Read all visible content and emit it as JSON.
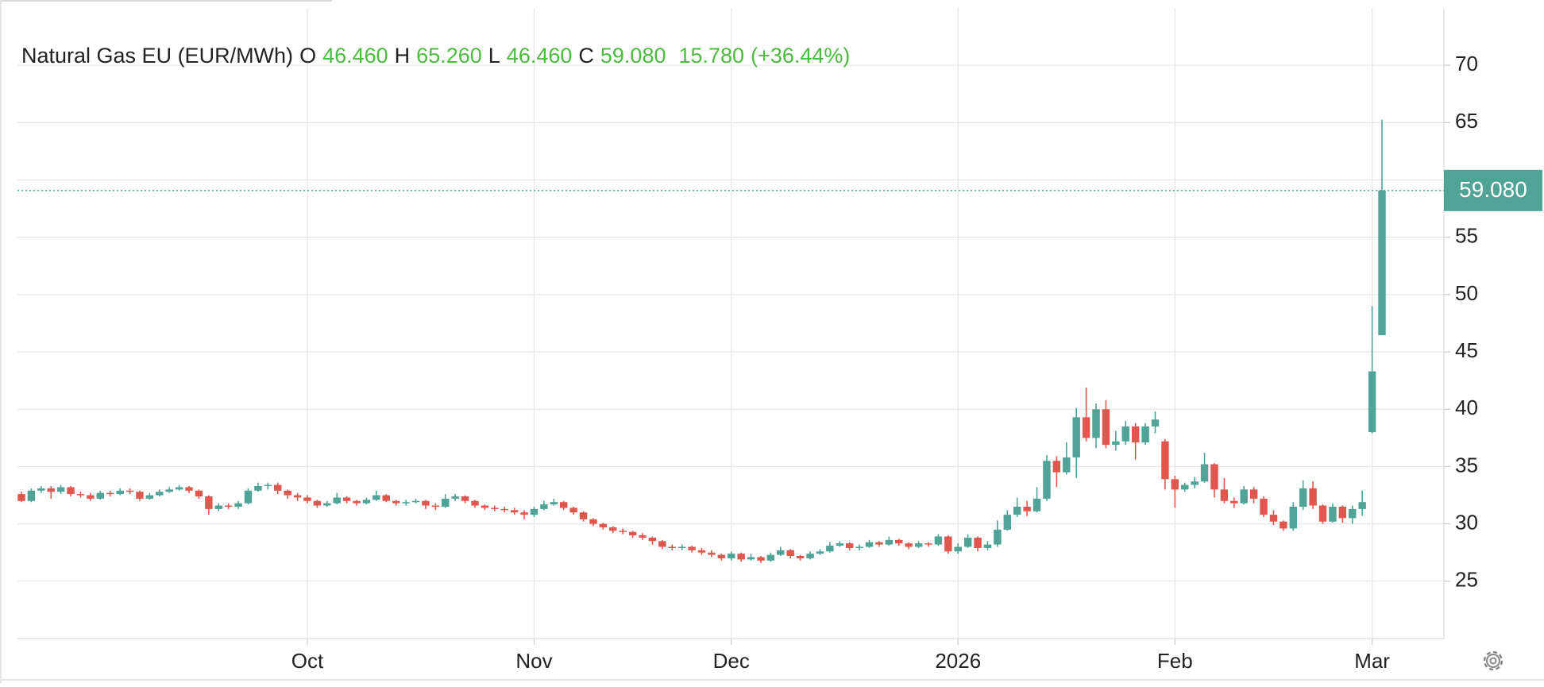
{
  "chart_data": {
    "type": "candlestick",
    "readout": {
      "name": "Natural Gas EU (EUR/MWh)",
      "fields": [
        {
          "label": "O",
          "text": "46.460"
        },
        {
          "label": "H",
          "text": "65.260"
        },
        {
          "label": "L",
          "text": "46.460"
        },
        {
          "label": "C",
          "text": "59.080"
        }
      ],
      "change": "15.780",
      "change_pct": "(+36.44%)",
      "color": "#4cbb3f"
    },
    "last_price": {
      "value": 59.08,
      "label": "59.080"
    },
    "up_color": "#4fa397",
    "down_color": "#e0574f",
    "grid": true,
    "ylim": [
      20,
      75
    ],
    "yticks": [
      25,
      30,
      35,
      40,
      45,
      50,
      55,
      60,
      65,
      70
    ],
    "categories": [
      null,
      null,
      null,
      null,
      null,
      null,
      null,
      null,
      null,
      null,
      null,
      null,
      null,
      null,
      null,
      null,
      null,
      null,
      null,
      null,
      null,
      null,
      null,
      null,
      null,
      null,
      null,
      null,
      null,
      "Oct",
      null,
      null,
      null,
      null,
      null,
      null,
      null,
      null,
      null,
      null,
      null,
      null,
      null,
      null,
      null,
      null,
      null,
      null,
      null,
      null,
      null,
      null,
      "Nov",
      null,
      null,
      null,
      null,
      null,
      null,
      null,
      null,
      null,
      null,
      null,
      null,
      null,
      null,
      null,
      null,
      null,
      null,
      null,
      "Dec",
      null,
      null,
      null,
      null,
      null,
      null,
      null,
      null,
      null,
      null,
      null,
      null,
      null,
      null,
      null,
      null,
      null,
      null,
      null,
      null,
      null,
      null,
      "2026",
      null,
      null,
      null,
      null,
      null,
      null,
      null,
      null,
      null,
      null,
      null,
      null,
      null,
      null,
      null,
      null,
      null,
      null,
      null,
      null,
      null,
      "Feb",
      null,
      null,
      null,
      null,
      null,
      null,
      null,
      null,
      null,
      null,
      null,
      null,
      null,
      null,
      null,
      null,
      null,
      null,
      null,
      "Mar",
      null
    ],
    "series": [
      {
        "name": "Natural Gas EU (EUR/MWh)",
        "open": [
          32.6,
          32.0,
          32.9,
          33.1,
          32.8,
          33.2,
          32.6,
          32.5,
          32.2,
          32.7,
          32.6,
          32.9,
          32.8,
          32.2,
          32.5,
          32.8,
          33.0,
          33.2,
          32.9,
          32.4,
          31.3,
          31.6,
          31.5,
          31.8,
          32.9,
          33.3,
          33.4,
          32.9,
          32.5,
          32.3,
          32.0,
          31.6,
          31.8,
          32.3,
          32.0,
          31.8,
          32.1,
          32.5,
          32.0,
          31.8,
          31.9,
          32.0,
          31.6,
          31.5,
          32.2,
          32.4,
          32.0,
          31.6,
          31.4,
          31.3,
          31.2,
          31.0,
          30.8,
          31.3,
          31.7,
          31.9,
          31.4,
          31.0,
          30.4,
          30.0,
          29.7,
          29.4,
          29.3,
          29.0,
          28.8,
          28.5,
          28.0,
          27.9,
          28.0,
          27.7,
          27.5,
          27.3,
          27.0,
          27.4,
          26.9,
          27.1,
          26.8,
          27.3,
          27.7,
          27.2,
          27.0,
          27.4,
          27.6,
          28.1,
          28.3,
          27.9,
          28.0,
          28.4,
          28.2,
          28.6,
          28.3,
          28.0,
          28.3,
          28.2,
          28.9,
          27.6,
          28.0,
          28.8,
          27.9,
          28.2,
          29.5,
          30.8,
          31.5,
          31.1,
          32.2,
          35.5,
          34.5,
          35.8,
          39.3,
          37.5,
          40.0,
          36.9,
          37.2,
          38.5,
          37.1,
          38.5,
          37.2,
          33.9,
          33.0,
          33.4,
          33.7,
          35.2,
          33.0,
          32.0,
          31.8,
          33.0,
          32.2,
          30.8,
          30.2,
          29.6,
          31.5,
          33.1,
          31.6,
          30.2,
          31.5,
          30.5,
          31.3,
          38.0,
          46.46
        ],
        "high": [
          32.8,
          33.1,
          33.3,
          33.3,
          33.4,
          33.3,
          32.8,
          32.7,
          32.9,
          32.9,
          33.1,
          33.1,
          32.9,
          32.7,
          33.0,
          33.2,
          33.4,
          33.3,
          33.0,
          32.5,
          31.8,
          31.8,
          32.0,
          33.1,
          33.6,
          33.6,
          33.6,
          33.0,
          32.7,
          32.5,
          32.1,
          32.0,
          32.7,
          32.4,
          32.1,
          32.3,
          32.9,
          32.6,
          32.1,
          32.1,
          32.2,
          32.1,
          31.8,
          32.6,
          32.6,
          32.5,
          32.1,
          31.7,
          31.6,
          31.5,
          31.4,
          31.2,
          31.5,
          32.0,
          32.2,
          32.0,
          31.5,
          31.1,
          30.5,
          30.1,
          29.8,
          29.6,
          29.4,
          29.2,
          28.9,
          28.6,
          28.2,
          28.2,
          28.1,
          27.9,
          27.7,
          27.4,
          27.6,
          27.5,
          27.4,
          27.2,
          27.5,
          28.0,
          27.8,
          27.3,
          27.6,
          27.8,
          28.4,
          28.5,
          28.4,
          28.2,
          28.6,
          28.5,
          28.9,
          28.7,
          28.4,
          28.5,
          28.4,
          29.1,
          29.0,
          28.3,
          29.1,
          28.9,
          28.5,
          30.3,
          31.2,
          32.3,
          32.0,
          33.2,
          36.0,
          35.9,
          37.1,
          40.1,
          41.9,
          40.5,
          40.8,
          38.1,
          39.0,
          38.8,
          38.8,
          39.8,
          37.4,
          34.2,
          33.6,
          34.1,
          36.2,
          35.3,
          34.0,
          32.3,
          33.3,
          33.2,
          32.4,
          31.2,
          30.3,
          31.9,
          33.8,
          33.7,
          31.7,
          31.8,
          31.6,
          31.6,
          32.9,
          49.0,
          65.26
        ],
        "low": [
          31.9,
          31.9,
          32.7,
          32.2,
          32.6,
          32.4,
          32.3,
          32.0,
          32.1,
          32.4,
          32.5,
          32.6,
          32.0,
          32.1,
          32.4,
          32.7,
          32.9,
          32.7,
          32.2,
          30.8,
          31.1,
          31.3,
          31.3,
          31.7,
          32.8,
          33.0,
          32.6,
          32.2,
          32.0,
          31.8,
          31.4,
          31.5,
          31.7,
          31.8,
          31.6,
          31.7,
          32.0,
          31.9,
          31.6,
          31.6,
          31.8,
          31.3,
          31.2,
          31.4,
          32.0,
          31.8,
          31.4,
          31.2,
          31.1,
          31.0,
          30.8,
          30.4,
          30.6,
          31.2,
          31.6,
          31.2,
          30.8,
          30.2,
          29.8,
          29.5,
          29.2,
          29.1,
          28.8,
          28.6,
          28.2,
          27.8,
          27.7,
          27.7,
          27.5,
          27.3,
          27.1,
          26.8,
          26.8,
          26.7,
          26.8,
          26.6,
          26.7,
          27.2,
          27.0,
          26.8,
          26.9,
          27.3,
          27.5,
          28.0,
          27.7,
          27.7,
          27.9,
          28.0,
          28.1,
          28.1,
          27.8,
          27.9,
          28.0,
          28.1,
          27.4,
          27.4,
          27.9,
          27.6,
          27.7,
          28.0,
          29.4,
          30.6,
          30.7,
          31.0,
          32.0,
          33.2,
          34.3,
          34.0,
          37.2,
          36.6,
          36.6,
          36.4,
          36.9,
          35.6,
          36.9,
          37.9,
          33.0,
          31.4,
          32.8,
          33.1,
          33.6,
          32.3,
          31.8,
          31.4,
          31.7,
          31.8,
          30.6,
          29.9,
          29.4,
          29.4,
          31.2,
          31.3,
          30.0,
          30.1,
          30.1,
          30.0,
          30.7,
          37.9,
          46.46
        ],
        "close": [
          32.0,
          32.9,
          33.1,
          32.8,
          33.2,
          32.6,
          32.5,
          32.2,
          32.7,
          32.6,
          32.9,
          32.8,
          32.2,
          32.5,
          32.8,
          33.0,
          33.2,
          32.9,
          32.4,
          31.3,
          31.6,
          31.5,
          31.8,
          32.9,
          33.3,
          33.4,
          32.9,
          32.5,
          32.3,
          32.0,
          31.6,
          31.8,
          32.3,
          32.0,
          31.8,
          32.1,
          32.5,
          32.0,
          31.8,
          31.9,
          32.0,
          31.6,
          31.5,
          32.2,
          32.4,
          32.0,
          31.6,
          31.4,
          31.3,
          31.2,
          31.0,
          30.8,
          31.3,
          31.7,
          31.9,
          31.4,
          31.0,
          30.4,
          30.0,
          29.7,
          29.4,
          29.3,
          29.0,
          28.8,
          28.5,
          28.0,
          27.9,
          28.0,
          27.7,
          27.5,
          27.3,
          27.0,
          27.4,
          26.9,
          27.1,
          26.8,
          27.3,
          27.7,
          27.2,
          27.0,
          27.4,
          27.6,
          28.1,
          28.3,
          27.9,
          28.0,
          28.4,
          28.2,
          28.6,
          28.3,
          28.0,
          28.3,
          28.2,
          28.9,
          27.6,
          28.0,
          28.8,
          27.9,
          28.2,
          29.5,
          30.8,
          31.5,
          31.1,
          32.2,
          35.5,
          34.5,
          35.8,
          39.3,
          37.5,
          40.0,
          36.9,
          37.2,
          38.5,
          37.1,
          38.5,
          39.1,
          33.9,
          33.0,
          33.4,
          33.7,
          35.2,
          33.0,
          32.0,
          31.8,
          33.0,
          32.2,
          30.8,
          30.2,
          29.6,
          31.5,
          33.1,
          31.6,
          30.2,
          31.5,
          30.5,
          31.3,
          31.9,
          43.3,
          59.08
        ]
      }
    ]
  }
}
